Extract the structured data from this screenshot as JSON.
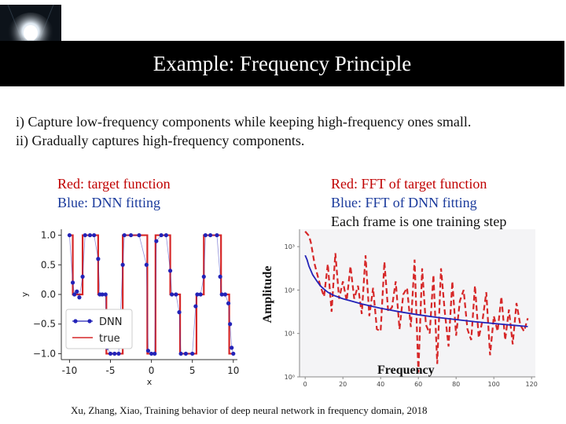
{
  "slide": {
    "title": "Example: Frequency Principle",
    "bullets": [
      "i) Capture low-frequency components while keeping high-frequency ones small.",
      "ii) Gradually captures high-frequency components."
    ],
    "left_caption": [
      "Red: target function",
      "Blue: DNN fitting"
    ],
    "right_caption": [
      "Red: FFT of target function",
      "Blue: FFT of DNN fitting",
      "Each frame is one training step"
    ],
    "amplitude_label": "Amplitude",
    "frequency_label": "Frequency",
    "citation": "Xu, Zhang, Xiao, Training behavior of deep neural network in frequency domain, 2018"
  },
  "colors": {
    "target": "#d62728",
    "fit": "#2323b8",
    "title_bg": "#000000"
  },
  "chart_data": [
    {
      "type": "line",
      "title": "",
      "xlabel": "x",
      "ylabel": "y",
      "xlim": [
        -11,
        10.5
      ],
      "ylim": [
        -1.1,
        1.1
      ],
      "xticks": [
        -10,
        -5,
        0,
        5,
        10
      ],
      "xtick_labels": [
        "-10",
        "-5",
        "0",
        "5",
        "10"
      ],
      "yticks": [
        1.0,
        0.5,
        0.0,
        -0.5,
        -1.0
      ],
      "ytick_labels": [
        "1.0",
        "0.5",
        "0.0",
        "−0.5",
        "−1.0"
      ],
      "legend": {
        "placement": "bottom-left",
        "entries": [
          "DNN",
          "true"
        ]
      },
      "series": [
        {
          "name": "true",
          "style": "line",
          "color": "#d62728",
          "x": [
            -10,
            -9.6,
            -9.6,
            -8.4,
            -8.4,
            -6.5,
            -6.5,
            -5.5,
            -5.5,
            -3.5,
            -3.5,
            -0.5,
            -0.5,
            0.5,
            0.5,
            2.3,
            2.3,
            3.5,
            3.5,
            5.5,
            5.5,
            6.4,
            6.4,
            8.5,
            8.5,
            9.5,
            9.5,
            10
          ],
          "y": [
            1,
            1,
            0,
            0,
            1,
            1,
            0,
            0,
            -1,
            -1,
            1,
            1,
            -1,
            -1,
            1,
            1,
            0,
            0,
            -1,
            -1,
            0,
            0,
            1,
            1,
            0,
            0,
            -1,
            -1
          ]
        },
        {
          "name": "DNN",
          "style": "markers",
          "color": "#2323b8",
          "x": [
            -10,
            -9.6,
            -9.4,
            -9.1,
            -8.8,
            -8.4,
            -8.1,
            -7.5,
            -7.0,
            -6.5,
            -6.3,
            -6.0,
            -5.6,
            -5.4,
            -5.0,
            -4.5,
            -4.0,
            -3.5,
            -3.3,
            -2.5,
            -1.5,
            -0.6,
            -0.4,
            0.0,
            0.4,
            0.6,
            1.2,
            1.8,
            2.3,
            2.5,
            3.0,
            3.4,
            3.6,
            4.2,
            5.0,
            5.4,
            5.6,
            6.0,
            6.4,
            6.6,
            7.2,
            8.0,
            8.4,
            8.6,
            9.0,
            9.4,
            9.6,
            9.8,
            10.0
          ],
          "y": [
            1.0,
            0.2,
            0.0,
            0.05,
            -0.05,
            0.3,
            1.0,
            1.0,
            1.0,
            0.6,
            0.0,
            0.0,
            0.0,
            -0.9,
            -1.0,
            -1.0,
            -1.0,
            0.5,
            1.0,
            1.0,
            1.0,
            0.5,
            -0.95,
            -1.0,
            -1.0,
            0.9,
            1.0,
            1.0,
            0.4,
            0.0,
            0.0,
            -0.3,
            -1.0,
            -1.0,
            -1.0,
            -0.2,
            0.0,
            0.0,
            0.3,
            1.0,
            1.0,
            1.0,
            0.3,
            0.0,
            0.0,
            -0.15,
            -0.5,
            -0.9,
            -1.0
          ]
        }
      ]
    },
    {
      "type": "line",
      "title": "",
      "xlabel": "Frequency",
      "ylabel": "Amplitude",
      "xlim": [
        -3,
        122
      ],
      "ylim_log10": [
        0,
        3.4
      ],
      "xticks": [
        0,
        20,
        40,
        60,
        80,
        100,
        120
      ],
      "xtick_labels": [
        "0",
        "20",
        "40",
        "60",
        "80",
        "100",
        "120"
      ],
      "yticks_log10": [
        3,
        2,
        1,
        0
      ],
      "ytick_labels": [
        "10³",
        "10²",
        "10¹",
        "10⁰"
      ],
      "series": [
        {
          "name": "FFT of target function",
          "style": "dashed",
          "color": "#d62728",
          "x": [
            0,
            2,
            3,
            5,
            8,
            10,
            12,
            14,
            16,
            18,
            20,
            22,
            24,
            26,
            28,
            30,
            32,
            34,
            36,
            38,
            40,
            42,
            44,
            46,
            48,
            50,
            52,
            54,
            56,
            58,
            60,
            62,
            64,
            66,
            68,
            70,
            72,
            74,
            76,
            78,
            80,
            82,
            84,
            86,
            88,
            90,
            92,
            94,
            96,
            98,
            100,
            102,
            104,
            106,
            108,
            110,
            112,
            114,
            116,
            118
          ],
          "y": [
            3.35,
            3.25,
            3.1,
            2.6,
            2.1,
            1.85,
            2.6,
            1.5,
            2.85,
            1.8,
            2.2,
            1.75,
            2.55,
            1.8,
            2.1,
            1.45,
            2.8,
            1.4,
            2.05,
            1.1,
            1.05,
            2.65,
            1.5,
            1.6,
            2.2,
            1.1,
            1.9,
            2.05,
            1.15,
            2.7,
            0.1,
            2.5,
            1.2,
            1.0,
            2.35,
            0.3,
            2.5,
            1.5,
            0.7,
            2.2,
            0.95,
            1.75,
            2.0,
            1.1,
            0.85,
            2.1,
            0.9,
            1.3,
            1.95,
            0.5,
            1.4,
            1.05,
            1.85,
            0.85,
            1.55,
            0.75,
            1.7,
            1.2,
            1.05,
            1.35
          ]
        },
        {
          "name": "FFT of DNN fitting",
          "style": "solid",
          "color": "#2323b8",
          "x": [
            0,
            1,
            2,
            3,
            4,
            6,
            8,
            10,
            12,
            15,
            20,
            25,
            30,
            35,
            40,
            50,
            60,
            70,
            80,
            90,
            100,
            110,
            118
          ],
          "y": [
            2.8,
            2.7,
            2.55,
            2.45,
            2.35,
            2.22,
            2.1,
            2.02,
            1.95,
            1.88,
            1.8,
            1.74,
            1.68,
            1.63,
            1.58,
            1.5,
            1.43,
            1.37,
            1.32,
            1.27,
            1.23,
            1.19,
            1.16
          ]
        }
      ]
    }
  ]
}
